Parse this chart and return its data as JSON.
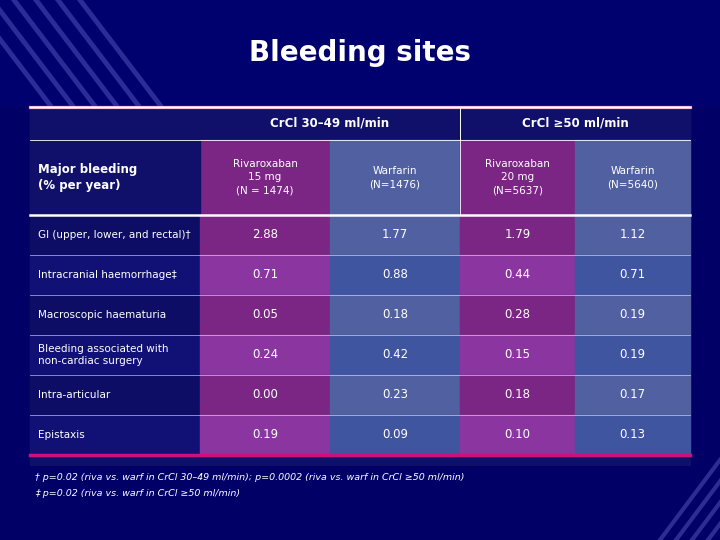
{
  "title": "Bleeding sites",
  "bg_dark": "#000066",
  "bg_title": "#00006e",
  "bg_table": "#1a1a6e",
  "pink_line": "#cc1177",
  "white": "#ffffff",
  "col_group_headers": [
    "CrCl 30–49 ml/min",
    "CrCl ≥50 ml/min"
  ],
  "col_headers": [
    "Rivaroxaban\n15 mg\n(N = 1474)",
    "Warfarin\n(N=1476)",
    "Rivaroxaban\n20 mg\n(N=5637)",
    "Warfarin\n(N=5640)"
  ],
  "left_header": "Major bleeding\n(% per year)",
  "row_labels": [
    "GI (upper, lower, and rectal)†",
    "Intracranial haemorrhage‡",
    "Macroscopic haematuria",
    "Bleeding associated with\nnon-cardiac surgery",
    "Intra-articular",
    "Epistaxis"
  ],
  "data": [
    [
      2.88,
      1.77,
      1.79,
      1.12
    ],
    [
      0.71,
      0.88,
      0.44,
      0.71
    ],
    [
      0.05,
      0.18,
      0.28,
      0.19
    ],
    [
      0.24,
      0.42,
      0.15,
      0.19
    ],
    [
      0.0,
      0.23,
      0.18,
      0.17
    ],
    [
      0.19,
      0.09,
      0.1,
      0.13
    ]
  ],
  "riva_col_color": "#7b2585",
  "warf_col_color": "#5060a0",
  "riva_col_color2": "#8b35a0",
  "warf_col_color2": "#4055a0",
  "group_hdr_color": "#1a1a6e",
  "row_bg_even": "#12126a",
  "row_bg_odd": "#0d0d60",
  "footnotes": [
    "† p=0.02 (riva vs. warf in CrCl 30–49 ml/min); p=0.0002 (riva vs. warf in CrCl ≥50 ml/min)",
    "‡ p=0.02 (riva vs. warf in CrCl ≥50 ml/min)"
  ]
}
